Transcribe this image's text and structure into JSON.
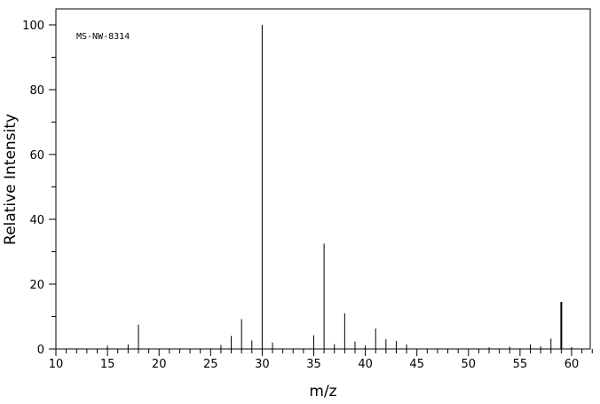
{
  "chart_data": {
    "type": "bar",
    "title": "",
    "annotation": "MS-NW-8314",
    "xlabel": "m/z",
    "ylabel": "Relative Intensity",
    "xlim": [
      10,
      62
    ],
    "ylim": [
      0,
      105
    ],
    "x_ticks": [
      10,
      15,
      20,
      25,
      30,
      35,
      40,
      45,
      50,
      55,
      60
    ],
    "y_ticks": [
      0,
      20,
      40,
      60,
      80,
      100
    ],
    "grid": false,
    "peaks": [
      {
        "mz": 15,
        "intensity": 1.0
      },
      {
        "mz": 17,
        "intensity": 1.4
      },
      {
        "mz": 18,
        "intensity": 7.5
      },
      {
        "mz": 26,
        "intensity": 1.2
      },
      {
        "mz": 27,
        "intensity": 4.0
      },
      {
        "mz": 28,
        "intensity": 9.2
      },
      {
        "mz": 29,
        "intensity": 2.6
      },
      {
        "mz": 30,
        "intensity": 100.0
      },
      {
        "mz": 31,
        "intensity": 2.0
      },
      {
        "mz": 35,
        "intensity": 4.2
      },
      {
        "mz": 36,
        "intensity": 32.5
      },
      {
        "mz": 37,
        "intensity": 1.5
      },
      {
        "mz": 38,
        "intensity": 11.0
      },
      {
        "mz": 39,
        "intensity": 2.3
      },
      {
        "mz": 40,
        "intensity": 1.1
      },
      {
        "mz": 41,
        "intensity": 6.3
      },
      {
        "mz": 42,
        "intensity": 3.0
      },
      {
        "mz": 43,
        "intensity": 2.5
      },
      {
        "mz": 44,
        "intensity": 1.4
      },
      {
        "mz": 52,
        "intensity": 0.5
      },
      {
        "mz": 54,
        "intensity": 0.7
      },
      {
        "mz": 56,
        "intensity": 1.4
      },
      {
        "mz": 57,
        "intensity": 0.8
      },
      {
        "mz": 58,
        "intensity": 3.2
      },
      {
        "mz": 59,
        "intensity": 14.5
      },
      {
        "mz": 60,
        "intensity": 0.6
      }
    ]
  }
}
